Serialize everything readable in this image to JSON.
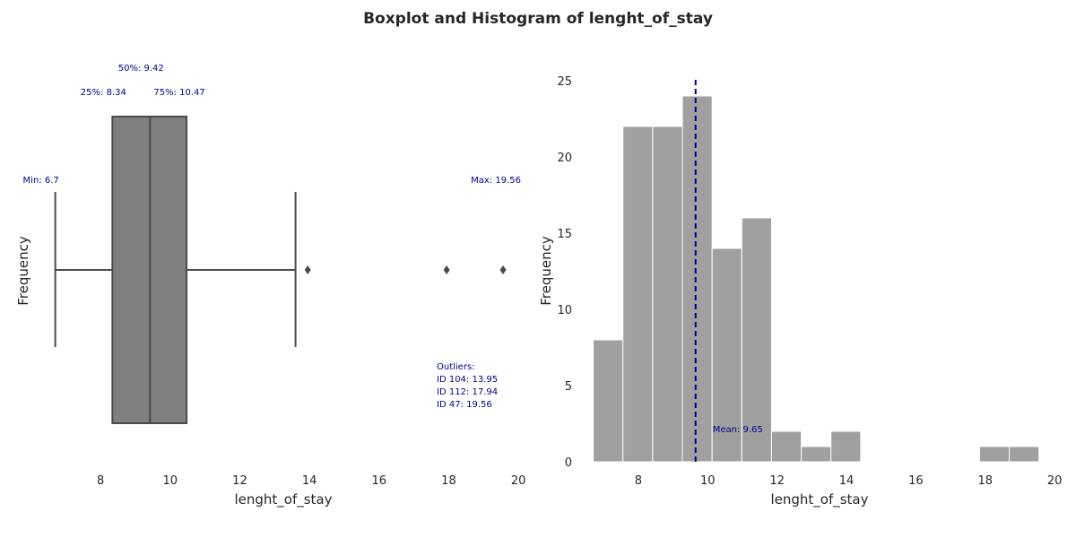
{
  "title": "Boxplot and Histogram of lenght_of_stay",
  "colors": {
    "box_fill": "#808080",
    "box_edge": "#4a4a4a",
    "bar_fill": "#a0a0a0",
    "bar_edge": "#ffffff",
    "annotation": "#00008b",
    "mean_line": "#00008b",
    "text": "#262626"
  },
  "chart_data": [
    {
      "type": "box",
      "xlabel": "lenght_of_stay",
      "ylabel": "Frequency",
      "xlim": [
        6.4,
        20.1
      ],
      "x_ticks": [
        8,
        10,
        12,
        14,
        16,
        18,
        20
      ],
      "grid": false,
      "stats": {
        "min": 6.7,
        "q1": 8.34,
        "median": 9.42,
        "q3": 10.47,
        "whisker_high": 13.6,
        "max": 19.56
      },
      "outliers": [
        13.95,
        17.94,
        19.56
      ],
      "annotations": {
        "min": "Min: 6.7",
        "q1": "25%: 8.34",
        "median": "50%: 9.42",
        "q3": "75%: 10.47",
        "max": "Max: 19.56",
        "outliers_header": "Outliers:",
        "outlier_lines": [
          "ID 104: 13.95",
          "ID 112: 17.94",
          "ID 47: 19.56"
        ]
      }
    },
    {
      "type": "histogram",
      "xlabel": "lenght_of_stay",
      "ylabel": "Frequency",
      "xlim": [
        6.4,
        20.1
      ],
      "ylim": [
        0,
        25.5
      ],
      "x_ticks": [
        8,
        10,
        12,
        14,
        16,
        18,
        20
      ],
      "y_ticks": [
        0,
        5,
        10,
        15,
        20,
        25
      ],
      "grid": false,
      "bin_edges": [
        6.7,
        7.557,
        8.413,
        9.27,
        10.127,
        10.983,
        11.84,
        12.697,
        13.553,
        14.41,
        15.267,
        16.123,
        16.98,
        17.837,
        18.693,
        19.55
      ],
      "counts": [
        8,
        22,
        22,
        24,
        14,
        16,
        2,
        1,
        2,
        0,
        0,
        0,
        0,
        1,
        1
      ],
      "mean": 9.65,
      "mean_label": "Mean: 9.65"
    }
  ]
}
